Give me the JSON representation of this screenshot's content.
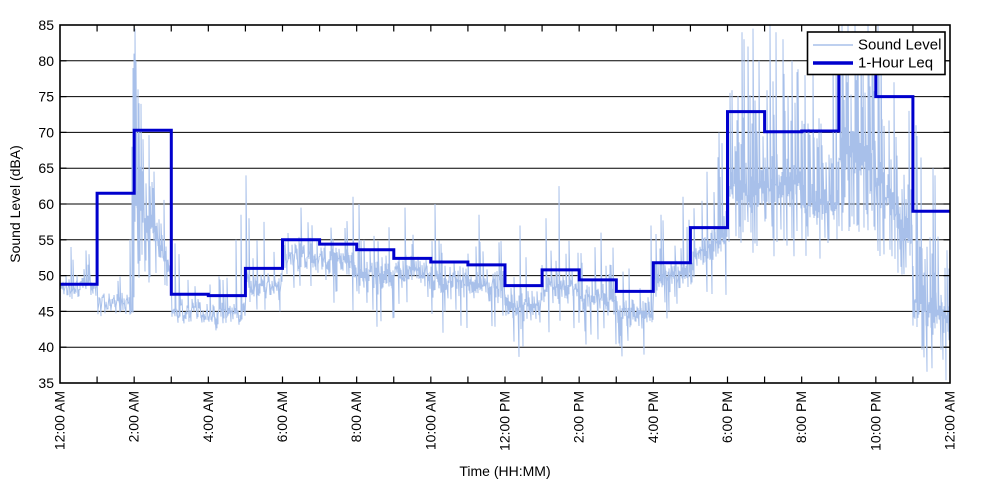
{
  "figure": {
    "background": "#ffffff"
  },
  "chart_data": {
    "type": "line",
    "title": "",
    "xlabel": "Time (HH:MM)",
    "ylabel": "Sound Level (dBA)",
    "x_unit": "hours",
    "xlim_hours": [
      0,
      24
    ],
    "ylim": [
      35,
      85
    ],
    "yticks": [
      35,
      40,
      45,
      50,
      55,
      60,
      65,
      70,
      75,
      80,
      85
    ],
    "xtick_hours": [
      0,
      2,
      4,
      6,
      8,
      10,
      12,
      14,
      16,
      18,
      20,
      22,
      24
    ],
    "xtick_labels": [
      "12:00 AM",
      "2:00 AM",
      "4:00 AM",
      "6:00 AM",
      "8:00 AM",
      "10:00 AM",
      "12:00 PM",
      "2:00 PM",
      "4:00 PM",
      "6:00 PM",
      "8:00 PM",
      "10:00 PM",
      "12:00 AM"
    ],
    "minor_xtick_every_hours": 1,
    "grid": {
      "horizontal": true,
      "vertical": false,
      "style": "solid",
      "color": "#000000"
    },
    "axis_color": "#000000",
    "legend": {
      "position": "top-right",
      "border_color": "#000000",
      "background": "#ffffff",
      "entries": [
        {
          "label": "Sound Level",
          "color": "#a8c0ea",
          "weight": "thin"
        },
        {
          "label": "1-Hour Leq",
          "color": "#0000cd",
          "weight": "thick"
        }
      ]
    },
    "series": [
      {
        "name": "Sound Level",
        "style": "noisy-line",
        "color": "#a8c0ea",
        "envelope_hourly": [
          {
            "lo": 46,
            "typ": 48.5,
            "hi": 53,
            "p": 0.1
          },
          {
            "lo": 44,
            "typ": 46,
            "hi": 50,
            "p": 0.07
          },
          {
            "lo": [
              50,
              46
            ],
            "typ": [
              61,
              51
            ],
            "hi": [
              79,
              57
            ],
            "p": 0.25
          },
          {
            "lo": 42.5,
            "typ": 45,
            "hi": 49.5,
            "p": 0.1
          },
          {
            "lo": 41.5,
            "typ": 44.5,
            "hi": 50,
            "p": 0.1
          },
          {
            "lo": 45,
            "typ": 48.5,
            "hi": 55,
            "p": 0.13
          },
          {
            "lo": 48,
            "typ": 52.5,
            "hi": 57.5,
            "p": 0.18
          },
          {
            "lo": 44,
            "typ": 52,
            "hi": 58,
            "p": 0.18
          },
          {
            "lo": 42,
            "typ": 50,
            "hi": 57,
            "p": 0.18
          },
          {
            "lo": 43,
            "typ": 50.5,
            "hi": 57,
            "p": 0.18
          },
          {
            "lo": 41.5,
            "typ": 49.5,
            "hi": 57,
            "p": 0.18
          },
          {
            "lo": 41,
            "typ": 49,
            "hi": 56,
            "p": 0.18
          },
          {
            "lo": 38.5,
            "typ": 46,
            "hi": 53.5,
            "p": 0.15
          },
          {
            "lo": 42,
            "typ": 48.5,
            "hi": 55.5,
            "p": 0.15
          },
          {
            "lo": 39.5,
            "typ": 47,
            "hi": 54,
            "p": 0.15
          },
          {
            "lo": 38.5,
            "typ": 45,
            "hi": 52.5,
            "p": 0.15
          },
          {
            "lo": 44,
            "typ": 50,
            "hi": 58,
            "p": 0.18
          },
          {
            "lo": 47,
            "typ": [
              52,
              57
            ],
            "hi": [
              61,
              69
            ],
            "p": 0.22
          },
          {
            "lo": 53,
            "typ": 62,
            "hi": 77,
            "p": 0.35
          },
          {
            "lo": 52,
            "typ": 63,
            "hi": 79,
            "p": 0.35
          },
          {
            "lo": 52,
            "typ": 60,
            "hi": 73,
            "p": 0.3
          },
          {
            "lo": 56,
            "typ": 67,
            "hi": 85,
            "p": 0.5
          },
          {
            "lo": 50,
            "typ": [
              64,
              54
            ],
            "hi": [
              83,
              64
            ],
            "p": 0.4
          },
          {
            "lo": 35.3,
            "typ": [
              46,
              44
            ],
            "hi": [
              60,
              55
            ],
            "p": 0.35
          }
        ],
        "spikes": [
          [
            0.3,
            54
          ],
          [
            0.7,
            53.5
          ],
          [
            1.88,
            55
          ],
          [
            1.93,
            68
          ],
          [
            1.96,
            79
          ],
          [
            1.985,
            81
          ],
          [
            2.01,
            84.5
          ],
          [
            2.03,
            83.5
          ],
          [
            2.06,
            80
          ],
          [
            2.09,
            76
          ],
          [
            2.13,
            72
          ],
          [
            3.1,
            54.5
          ],
          [
            3.2,
            53
          ],
          [
            4.75,
            55
          ],
          [
            4.87,
            58.5
          ],
          [
            5.02,
            64
          ],
          [
            5.1,
            58
          ],
          [
            5.5,
            57.5
          ],
          [
            6.5,
            59.5
          ],
          [
            7.9,
            61
          ],
          [
            8.05,
            60
          ],
          [
            9.3,
            59.5
          ],
          [
            10.1,
            60
          ],
          [
            11.3,
            58.5
          ],
          [
            12.4,
            57
          ],
          [
            13.1,
            58
          ],
          [
            13.45,
            62.5
          ],
          [
            14.6,
            56
          ],
          [
            15.93,
            57
          ],
          [
            16.2,
            58.5
          ],
          [
            16.8,
            61
          ],
          [
            17.78,
            70
          ],
          [
            17.84,
            68.5
          ],
          [
            18.4,
            84
          ],
          [
            18.45,
            83
          ],
          [
            18.55,
            82
          ],
          [
            18.7,
            84.5
          ],
          [
            18.85,
            80
          ],
          [
            19.15,
            85
          ],
          [
            19.3,
            84
          ],
          [
            19.5,
            83
          ],
          [
            19.75,
            80
          ],
          [
            20.1,
            78
          ],
          [
            20.3,
            79
          ],
          [
            20.85,
            84
          ],
          [
            20.92,
            83
          ],
          [
            21.1,
            85
          ],
          [
            21.25,
            85
          ],
          [
            21.45,
            85
          ],
          [
            21.6,
            84
          ],
          [
            21.8,
            85
          ],
          [
            22.05,
            85
          ],
          [
            22.15,
            84
          ],
          [
            22.5,
            77
          ],
          [
            22.9,
            73
          ],
          [
            23.08,
            71
          ],
          [
            23.12,
            69.5
          ],
          [
            23.22,
            66.5
          ],
          [
            23.55,
            65
          ],
          [
            23.6,
            64
          ]
        ]
      },
      {
        "name": "1-Hour Leq",
        "style": "step",
        "color": "#0000cd",
        "hourly_leq_dBA": [
          48.8,
          61.5,
          70.3,
          47.4,
          47.2,
          51.0,
          55.0,
          54.4,
          53.6,
          52.4,
          51.9,
          51.5,
          48.6,
          50.8,
          49.4,
          47.8,
          51.8,
          56.7,
          72.9,
          70.1,
          70.2,
          81.0,
          75.0,
          59.0
        ]
      }
    ]
  }
}
